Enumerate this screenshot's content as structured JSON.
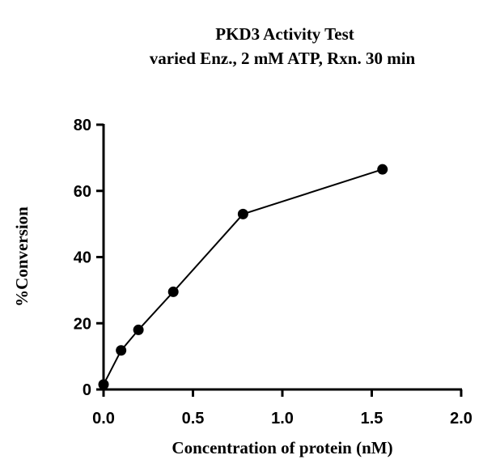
{
  "chart_data": {
    "type": "line",
    "title": "PKD3 Activity Test",
    "subtitle": "varied Enz., 2 mM ATP, Rxn. 30 min",
    "xlabel": "Concentration of protein (nM)",
    "ylabel": "%Conversion",
    "xlim": [
      0,
      2.0
    ],
    "ylim": [
      0,
      80
    ],
    "xticks": [
      "0.0",
      "0.5",
      "1.0",
      "1.5",
      "2.0"
    ],
    "yticks": [
      "0",
      "20",
      "40",
      "60",
      "80"
    ],
    "grid": false,
    "series": [
      {
        "x": [
          0.0,
          0.098,
          0.195,
          0.39,
          0.78,
          1.56
        ],
        "y": [
          1.5,
          11.8,
          18.0,
          29.5,
          53.0,
          66.5
        ]
      }
    ],
    "colors": {
      "line": "#000000",
      "marker": "#000000"
    }
  }
}
